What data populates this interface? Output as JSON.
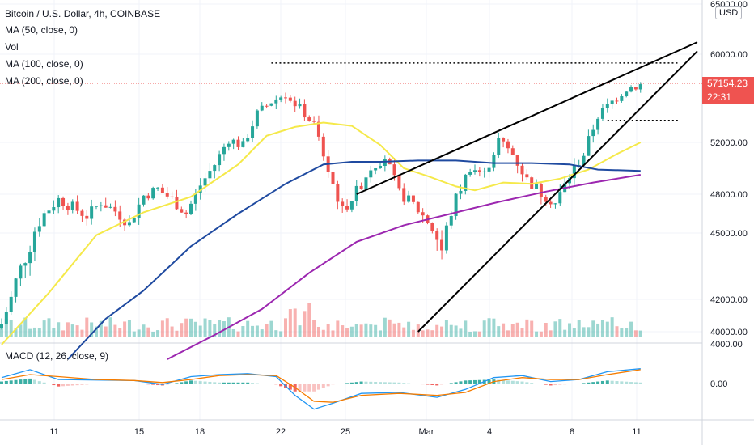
{
  "legend": {
    "title": "Bitcoin / U.S. Dollar, 4h, COINBASE",
    "ma50": "MA (50, close, 0)",
    "vol": "Vol",
    "ma100": "MA (100, close, 0)",
    "ma200": "MA (200, close, 0)",
    "macd": "MACD (12, 26, close, 9)"
  },
  "currency": "USD",
  "last_price": {
    "value": "57154.23",
    "countdown": "22:31",
    "color": "#ef5350"
  },
  "colors": {
    "up": "#26a69a",
    "down": "#ef5350",
    "ma50": "#f5e94a",
    "ma100": "#1f4aa0",
    "ma200": "#9c27b0",
    "macd": "#2196f3",
    "signal": "#f57c00",
    "trendline": "#000000"
  },
  "chart_data": {
    "type": "candlestick",
    "price_axis": {
      "ticks": [
        "65000.00",
        "60000.00",
        "52000.00",
        "48000.00",
        "45000.00",
        "42000.00",
        "40000.00"
      ]
    },
    "macd_axis": {
      "ticks": [
        "4000.00",
        "0.00"
      ]
    },
    "date_axis": {
      "ticks": [
        "11",
        "15",
        "18",
        "22",
        "25",
        "Mar",
        "4",
        "8",
        "11"
      ]
    },
    "close_path": [
      [
        0,
        40500
      ],
      [
        3,
        42800
      ],
      [
        6,
        44500
      ],
      [
        9,
        46500
      ],
      [
        12,
        47600
      ],
      [
        15,
        47000
      ],
      [
        18,
        46300
      ],
      [
        21,
        47400
      ],
      [
        24,
        46700
      ],
      [
        27,
        45700
      ],
      [
        30,
        47900
      ],
      [
        33,
        48400
      ],
      [
        36,
        47600
      ],
      [
        39,
        46500
      ],
      [
        42,
        48700
      ],
      [
        45,
        50300
      ],
      [
        48,
        52300
      ],
      [
        51,
        51700
      ],
      [
        54,
        54600
      ],
      [
        57,
        55700
      ],
      [
        60,
        56400
      ],
      [
        63,
        55100
      ],
      [
        66,
        53600
      ],
      [
        69,
        49800
      ],
      [
        72,
        46700
      ],
      [
        75,
        48200
      ],
      [
        78,
        50100
      ],
      [
        81,
        50900
      ],
      [
        84,
        48100
      ],
      [
        87,
        47200
      ],
      [
        90,
        45900
      ],
      [
        93,
        44200
      ],
      [
        96,
        47700
      ],
      [
        99,
        50100
      ],
      [
        102,
        49500
      ],
      [
        105,
        52200
      ],
      [
        108,
        51100
      ],
      [
        111,
        49100
      ],
      [
        114,
        48100
      ],
      [
        117,
        47300
      ],
      [
        120,
        49400
      ],
      [
        123,
        51100
      ],
      [
        126,
        54400
      ],
      [
        129,
        55700
      ],
      [
        132,
        56900
      ],
      [
        135,
        57200
      ]
    ],
    "ma50": [
      [
        0,
        39200
      ],
      [
        10,
        42300
      ],
      [
        20,
        44900
      ],
      [
        30,
        46600
      ],
      [
        40,
        47800
      ],
      [
        50,
        50300
      ],
      [
        56,
        52600
      ],
      [
        62,
        53400
      ],
      [
        68,
        53800
      ],
      [
        74,
        53500
      ],
      [
        80,
        51800
      ],
      [
        85,
        50000
      ],
      [
        90,
        49400
      ],
      [
        96,
        48600
      ],
      [
        100,
        48300
      ],
      [
        106,
        48900
      ],
      [
        112,
        48800
      ],
      [
        118,
        49200
      ],
      [
        124,
        49900
      ],
      [
        130,
        51100
      ],
      [
        135,
        52000
      ]
    ],
    "ma100": [
      [
        14,
        38300
      ],
      [
        22,
        40800
      ],
      [
        30,
        42400
      ],
      [
        40,
        44400
      ],
      [
        50,
        46500
      ],
      [
        60,
        48800
      ],
      [
        68,
        50300
      ],
      [
        74,
        50500
      ],
      [
        80,
        50500
      ],
      [
        88,
        50600
      ],
      [
        96,
        50600
      ],
      [
        104,
        50400
      ],
      [
        112,
        50400
      ],
      [
        120,
        50300
      ],
      [
        126,
        49900
      ],
      [
        135,
        49800
      ]
    ],
    "ma200": [
      [
        35,
        38300
      ],
      [
        45,
        39800
      ],
      [
        55,
        41400
      ],
      [
        65,
        43200
      ],
      [
        75,
        44600
      ],
      [
        85,
        45600
      ],
      [
        95,
        46500
      ],
      [
        105,
        47400
      ],
      [
        115,
        48200
      ],
      [
        125,
        48900
      ],
      [
        135,
        49500
      ]
    ],
    "macd_line": [
      [
        0,
        600
      ],
      [
        6,
        1400
      ],
      [
        12,
        400
      ],
      [
        20,
        350
      ],
      [
        28,
        300
      ],
      [
        34,
        -100
      ],
      [
        40,
        700
      ],
      [
        46,
        900
      ],
      [
        52,
        1000
      ],
      [
        58,
        700
      ],
      [
        62,
        -1200
      ],
      [
        66,
        -2600
      ],
      [
        70,
        -2000
      ],
      [
        76,
        -1000
      ],
      [
        84,
        -900
      ],
      [
        92,
        -1400
      ],
      [
        98,
        -600
      ],
      [
        104,
        600
      ],
      [
        110,
        800
      ],
      [
        116,
        200
      ],
      [
        122,
        400
      ],
      [
        128,
        1200
      ],
      [
        135,
        1500
      ]
    ],
    "signal_line": [
      [
        0,
        400
      ],
      [
        6,
        900
      ],
      [
        12,
        700
      ],
      [
        20,
        400
      ],
      [
        28,
        300
      ],
      [
        34,
        100
      ],
      [
        40,
        400
      ],
      [
        46,
        800
      ],
      [
        52,
        900
      ],
      [
        58,
        800
      ],
      [
        62,
        -400
      ],
      [
        66,
        -1800
      ],
      [
        70,
        -1900
      ],
      [
        76,
        -1200
      ],
      [
        84,
        -1000
      ],
      [
        92,
        -1200
      ],
      [
        98,
        -900
      ],
      [
        104,
        200
      ],
      [
        110,
        600
      ],
      [
        116,
        400
      ],
      [
        122,
        400
      ],
      [
        128,
        900
      ],
      [
        135,
        1400
      ]
    ],
    "trendlines": [
      {
        "from": [
          75,
          48000
        ],
        "to": [
          147,
          61200
        ]
      },
      {
        "from": [
          88,
          40000
        ],
        "to": [
          147,
          60300
        ]
      }
    ],
    "horizontal_levels": [
      {
        "price": 59200,
        "from": 57,
        "to": 143
      },
      {
        "price": 54000,
        "from": 128,
        "to": 143
      }
    ]
  }
}
